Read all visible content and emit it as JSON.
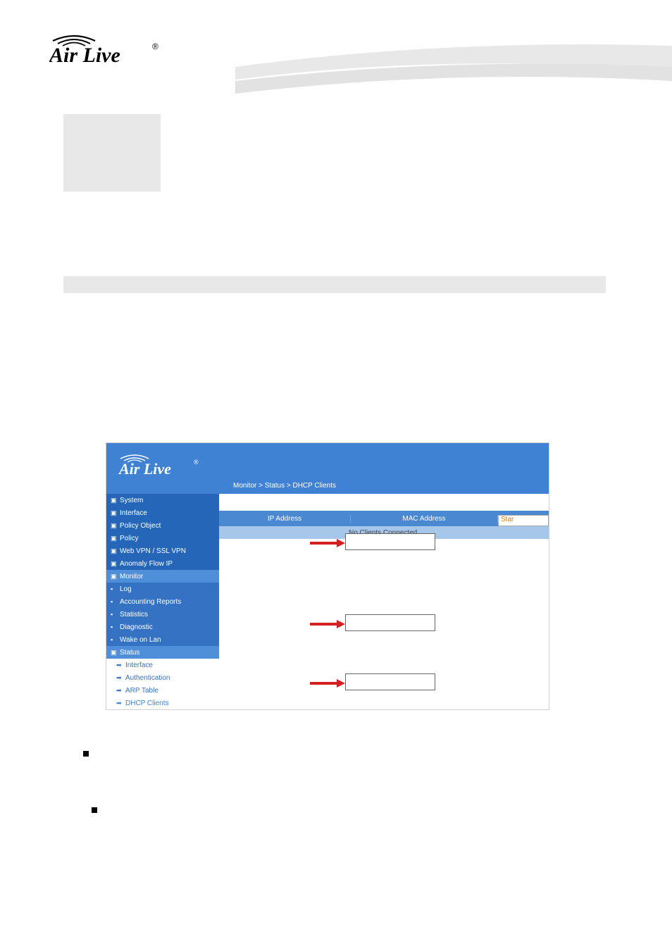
{
  "header": {
    "logo_text": "Air Live",
    "logo_reg": "®"
  },
  "breadcrumb": "Monitor > Status > DHCP Clients",
  "sidebar": {
    "items": [
      {
        "label": "System",
        "cls": "sb-dark",
        "icon": "▣"
      },
      {
        "label": "Interface",
        "cls": "sb-dark",
        "icon": "▣"
      },
      {
        "label": "Policy Object",
        "cls": "sb-dark",
        "icon": "▣"
      },
      {
        "label": "Policy",
        "cls": "sb-dark",
        "icon": "▣"
      },
      {
        "label": "Web VPN / SSL VPN",
        "cls": "sb-dark",
        "icon": "▣"
      },
      {
        "label": "Anomaly Flow IP",
        "cls": "sb-dark",
        "icon": "▣"
      },
      {
        "label": "Monitor",
        "cls": "sb-mid",
        "icon": "▣"
      },
      {
        "label": "Log",
        "cls": "sb-sub",
        "icon": "▪"
      },
      {
        "label": "Accounting Reports",
        "cls": "sb-sub",
        "icon": "▪"
      },
      {
        "label": "Statistics",
        "cls": "sb-sub",
        "icon": "▪"
      },
      {
        "label": "Diagnostic",
        "cls": "sb-sub",
        "icon": "▪"
      },
      {
        "label": "Wake on Lan",
        "cls": "sb-sub",
        "icon": "▪"
      },
      {
        "label": "Status",
        "cls": "sb-mid",
        "icon": "▣"
      },
      {
        "label": "Interface",
        "cls": "sb-tree",
        "icon": "➡"
      },
      {
        "label": "Authentication",
        "cls": "sb-tree",
        "icon": "➡"
      },
      {
        "label": "ARP Table",
        "cls": "sb-tree",
        "icon": "➡"
      },
      {
        "label": "DHCP Clients",
        "cls": "sb-tree-active",
        "icon": "➡"
      }
    ]
  },
  "table": {
    "col_ip": "IP Address",
    "col_mac": "MAC Address",
    "col_sta": "Star",
    "empty_msg": "No Clients Connected."
  },
  "colors": {
    "nav_dark": "#2566b8",
    "nav_mid": "#4f8ed8",
    "header_blue": "#3f82d4",
    "band": "#a6c6ea"
  },
  "arrows": {
    "color": "#d42020"
  }
}
